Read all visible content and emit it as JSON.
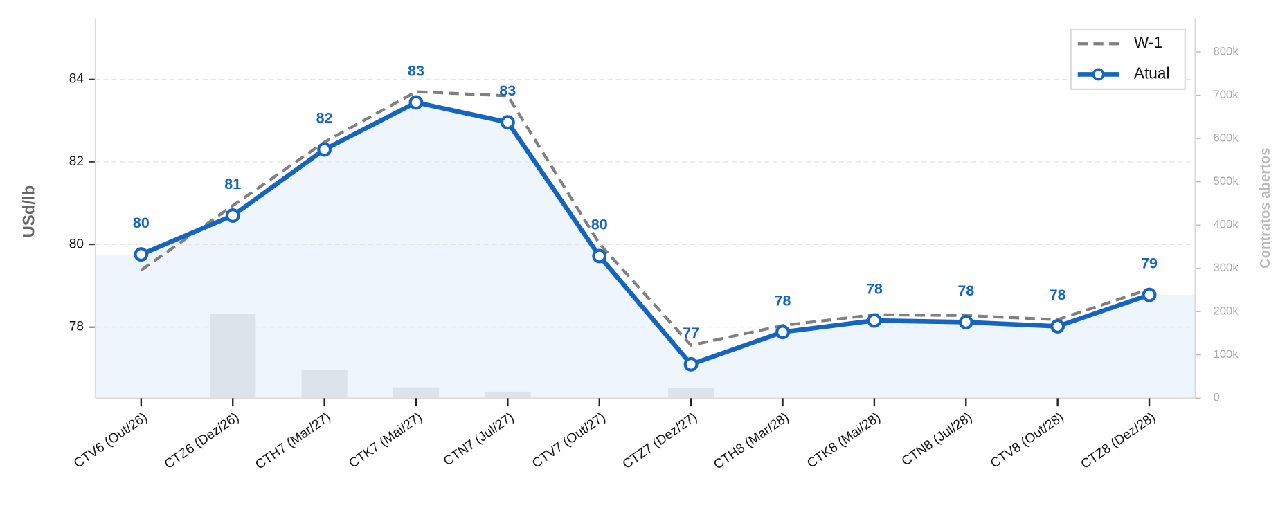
{
  "chart_data": {
    "type": "line",
    "y_label": "USd/lb",
    "y2_label": "Contratos abertos",
    "categories": [
      "CTV6 (Out/26)",
      "CTZ6 (Dez/26)",
      "CTH7 (Mar/27)",
      "CTK7 (Mai/27)",
      "CTN7 (Jul/27)",
      "CTV7 (Out/27)",
      "CTZ7 (Dez/27)",
      "CTH8 (Mar/28)",
      "CTK8 (Mai/28)",
      "CTN8 (Jul/28)",
      "CTV8 (Out/28)",
      "CTZ8 (Dez/28)"
    ],
    "series": [
      {
        "name": "W-1",
        "color": "#808080",
        "dashed": true,
        "values": [
          79.38,
          80.94,
          82.48,
          83.7,
          83.6,
          80.02,
          77.56,
          78.04,
          78.3,
          78.28,
          78.18,
          78.92
        ]
      },
      {
        "name": "Atual",
        "color": "#1565c0",
        "markers": true,
        "fill": "#eef5fc",
        "values": [
          79.76,
          80.7,
          82.3,
          83.44,
          82.96,
          79.72,
          77.1,
          77.88,
          78.16,
          78.12,
          78.02,
          78.78
        ],
        "value_labels": [
          "80",
          "81",
          "82",
          "83",
          "83",
          "80",
          "77",
          "78",
          "78",
          "78",
          "78",
          "79"
        ]
      }
    ],
    "open_interest": {
      "type": "bar",
      "axis": "y2",
      "color": "#dde3ea",
      "values": [
        0,
        195000,
        65000,
        25000,
        15000,
        0,
        23000,
        0,
        0,
        0,
        0,
        0
      ]
    },
    "ylim": [
      76.28,
      85.48
    ],
    "yticks": [
      78,
      80,
      82,
      84
    ],
    "y2lim": [
      0,
      878000
    ],
    "y2ticks": [
      0,
      {
        "value": 100000,
        "label": "100k"
      },
      {
        "value": 200000,
        "label": "200k"
      },
      {
        "value": 300000,
        "label": "300k"
      },
      {
        "value": 400000,
        "label": "400k"
      },
      {
        "value": 500000,
        "label": "500k"
      },
      {
        "value": 600000,
        "label": "600k"
      },
      {
        "value": 700000,
        "label": "700k"
      },
      {
        "value": 800000,
        "label": "800k"
      }
    ],
    "grid": true,
    "legend": "upper right"
  }
}
